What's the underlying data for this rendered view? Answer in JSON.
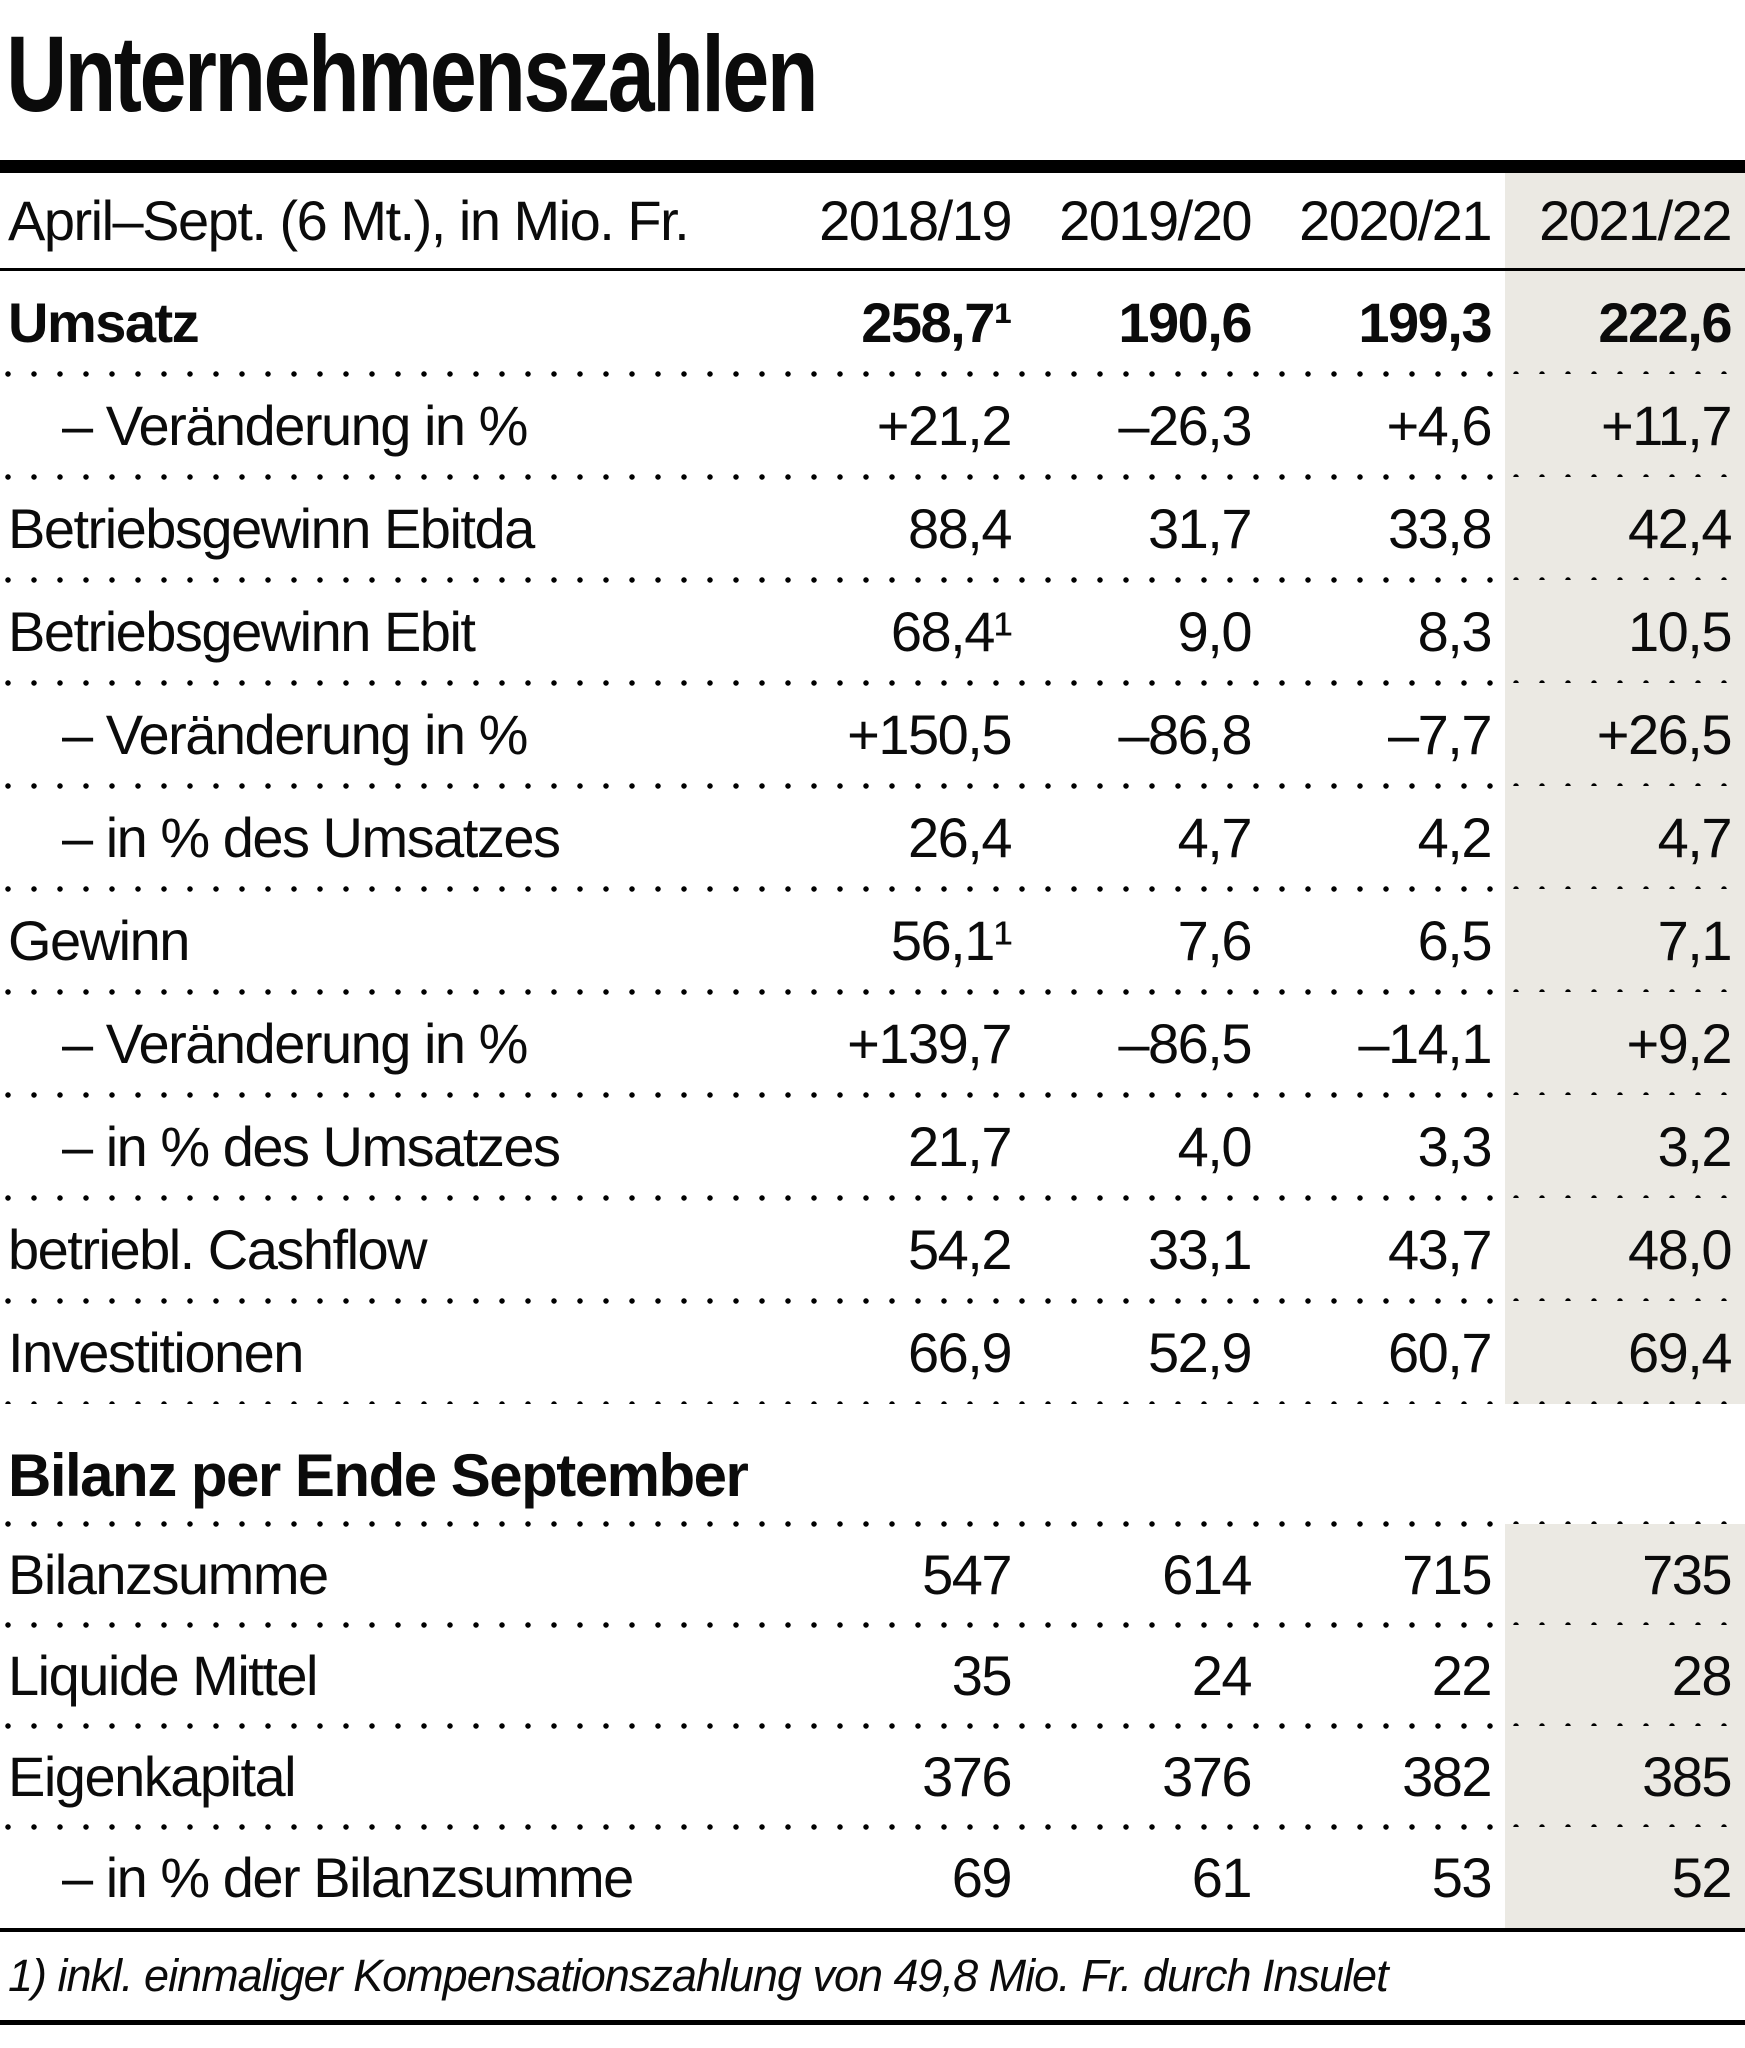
{
  "colors": {
    "highlight": "#ebe9e3",
    "rule": "#000000"
  },
  "chart_data": {
    "type": "table",
    "title": "Unternehmenszahlen",
    "header_label": "April–Sept. (6 Mt.), in Mio. Fr.",
    "columns": [
      "2018/19",
      "2019/20",
      "2020/21",
      "2021/22"
    ],
    "highlighted_column": "2021/22",
    "section1_rows": [
      {
        "label": "Umsatz",
        "bold": true,
        "indent": false,
        "values": [
          "258,7¹",
          "190,6",
          "199,3",
          "222,6"
        ]
      },
      {
        "label": "– Veränderung in %",
        "indent": true,
        "values": [
          "+21,2",
          "–26,3",
          "+4,6",
          "+11,7"
        ]
      },
      {
        "label": "Betriebsgewinn Ebitda",
        "indent": false,
        "values": [
          "88,4",
          "31,7",
          "33,8",
          "42,4"
        ]
      },
      {
        "label": "Betriebsgewinn Ebit",
        "indent": false,
        "values": [
          "68,4¹",
          "9,0",
          "8,3",
          "10,5"
        ]
      },
      {
        "label": "– Veränderung in %",
        "indent": true,
        "values": [
          "+150,5",
          "–86,8",
          "–7,7",
          "+26,5"
        ]
      },
      {
        "label": "– in % des Umsatzes",
        "indent": true,
        "values": [
          "26,4",
          "4,7",
          "4,2",
          "4,7"
        ]
      },
      {
        "label": "Gewinn",
        "indent": false,
        "values": [
          "56,1¹",
          "7,6",
          "6,5",
          "7,1"
        ]
      },
      {
        "label": "– Veränderung in %",
        "indent": true,
        "values": [
          "+139,7",
          "–86,5",
          "–14,1",
          "+9,2"
        ]
      },
      {
        "label": "– in % des Umsatzes",
        "indent": true,
        "values": [
          "21,7",
          "4,0",
          "3,3",
          "3,2"
        ]
      },
      {
        "label": "betriebl. Cashflow",
        "indent": false,
        "values": [
          "54,2",
          "33,1",
          "43,7",
          "48,0"
        ]
      },
      {
        "label": "Investitionen",
        "indent": false,
        "values": [
          "66,9",
          "52,9",
          "60,7",
          "69,4"
        ]
      }
    ],
    "section2_title": "Bilanz per Ende September",
    "section2_rows": [
      {
        "label": "Bilanzsumme",
        "indent": false,
        "values": [
          "547",
          "614",
          "715",
          "735"
        ]
      },
      {
        "label": "Liquide Mittel",
        "indent": false,
        "values": [
          "35",
          "24",
          "22",
          "28"
        ]
      },
      {
        "label": "Eigenkapital",
        "indent": false,
        "values": [
          "376",
          "376",
          "382",
          "385"
        ]
      },
      {
        "label": "– in % der Bilanzsumme",
        "indent": true,
        "values": [
          "69",
          "61",
          "53",
          "52"
        ]
      }
    ],
    "footnote": "1) inkl. einmaliger Kompensationszahlung von 49,8 Mio. Fr. durch Insulet"
  }
}
